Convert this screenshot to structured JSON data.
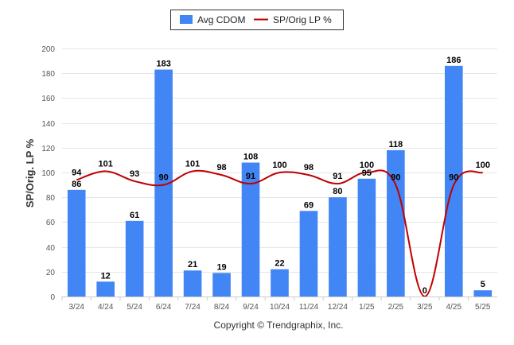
{
  "chart_data": {
    "type": "bar",
    "categories": [
      "3/24",
      "4/24",
      "5/24",
      "6/24",
      "7/24",
      "8/24",
      "9/24",
      "10/24",
      "11/24",
      "12/24",
      "1/25",
      "2/25",
      "3/25",
      "4/25",
      "5/25"
    ],
    "series": [
      {
        "name": "Avg CDOM",
        "type": "bar",
        "color": "#4285f4",
        "values": [
          86,
          12,
          61,
          183,
          21,
          19,
          108,
          22,
          69,
          80,
          95,
          118,
          0,
          186,
          5
        ]
      },
      {
        "name": "SP/Orig LP %",
        "type": "line",
        "color": "#c00000",
        "values": [
          94,
          101,
          93,
          90,
          101,
          98,
          91,
          100,
          98,
          91,
          100,
          90,
          0,
          90,
          100
        ]
      }
    ],
    "ylabel": "SP/Orig. LP %",
    "ylim": [
      0,
      200
    ],
    "yticks": [
      0,
      20,
      40,
      60,
      80,
      100,
      120,
      140,
      160,
      180,
      200
    ],
    "grid": true,
    "legend_position": "top-center"
  },
  "copyright": "Copyright © Trendgraphix, Inc."
}
